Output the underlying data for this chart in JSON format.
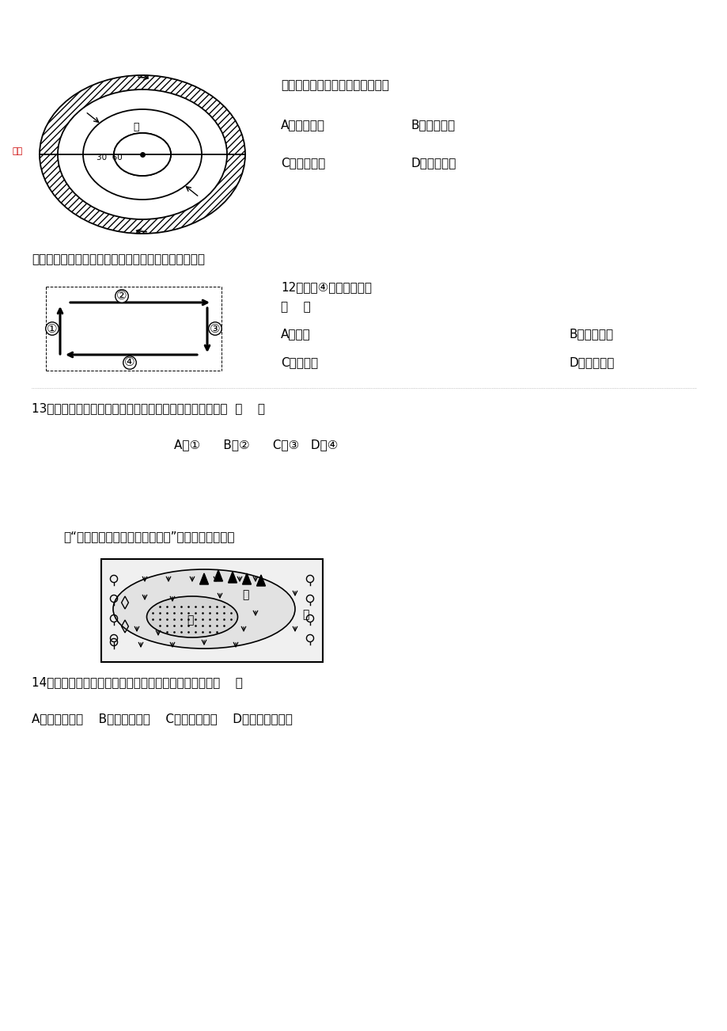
{
  "bg_color": "#ffffff",
  "body_fontsize": 11,
  "section1_text": "此季节，地中海沿岸的气候特征是",
  "section1_options": [
    [
      "A．高温多雨",
      "B．温和多雨"
    ],
    [
      "C．炎热干燥",
      "D．低温干燥"
    ]
  ],
  "section2_intro": "下图表示海陆间水循环的模式图，读图回答下列各题。",
  "section2_q12_line1": "12．图中④代表的水循环",
  "section2_q12_line2": "（    ）",
  "section2_q12_A": "A．蜗发",
  "section2_q12_B": "B．水汽输送",
  "section2_q12_C": "C．大气水",
  "section2_q12_D": "D．径流输送",
  "section3_q13": "13．目前人类可以在某些地区某些时候施加一定影响的环节  （    ）",
  "section3_q13_opts": "A．①      B．②      C．③   D．④",
  "section4_intro": "读“中纬度地区自然带分布示意图”，回答以下各题。",
  "section4_q14": "14．图中甲、乙、丙自然带分布呈现的地域分异规律是（    ）",
  "section4_q14_opts": "A．经度地带性    B．纬度地带性    C．垂直地带性    D．由低纬向高纬"
}
